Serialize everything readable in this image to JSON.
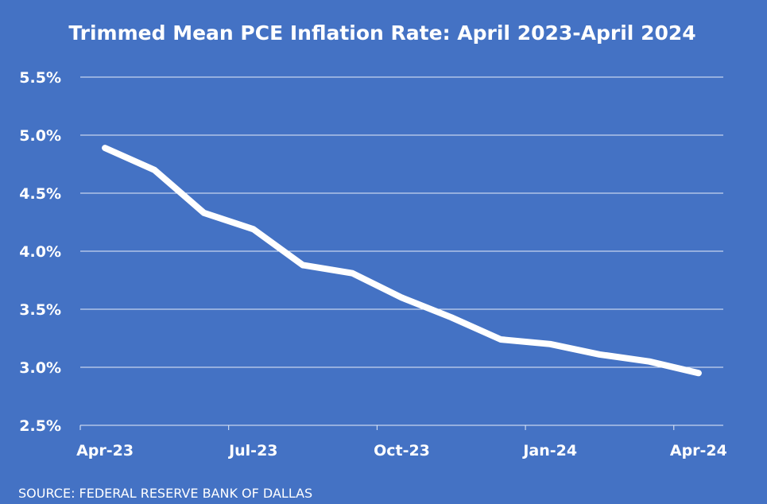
{
  "chart_data": {
    "type": "line",
    "title": "Trimmed Mean PCE Inflation Rate: April 2023-April 2024",
    "source": "SOURCE: FEDERAL RESERVE BANK OF DALLAS",
    "x": [
      "Apr-23",
      "May-23",
      "Jun-23",
      "Jul-23",
      "Aug-23",
      "Sep-23",
      "Oct-23",
      "Nov-23",
      "Dec-23",
      "Jan-24",
      "Feb-24",
      "Mar-24",
      "Apr-24"
    ],
    "x_tick_labels": [
      "Apr-23",
      "Jul-23",
      "Oct-23",
      "Jan-24",
      "Apr-24"
    ],
    "series": [
      {
        "values": [
          4.89,
          4.7,
          4.33,
          4.19,
          3.88,
          3.81,
          3.6,
          3.43,
          3.24,
          3.2,
          3.11,
          3.05,
          2.95
        ]
      }
    ],
    "y_tick_labels": [
      "2.5%",
      "3.0%",
      "3.5%",
      "4.0%",
      "4.5%",
      "5.0%",
      "5.5%"
    ],
    "y_ticks": [
      2.5,
      3.0,
      3.5,
      4.0,
      4.5,
      5.0,
      5.5
    ],
    "ylim": [
      2.5,
      5.5
    ],
    "grid": true,
    "colors": {
      "background": "#4472c4",
      "line": "#ffffff",
      "text": "#ffffff",
      "grid": "#e6ecf7"
    }
  }
}
